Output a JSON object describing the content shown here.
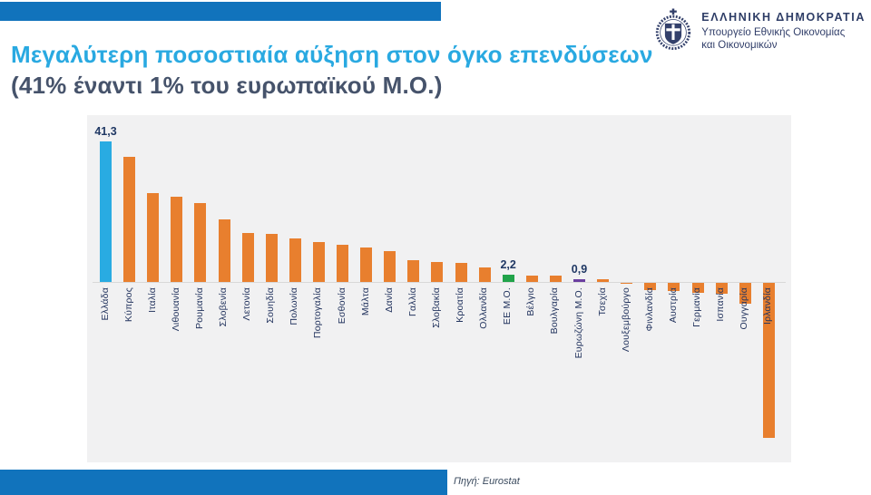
{
  "gov_header": {
    "title": "ΕΛΛΗΝΙΚΗ ΔΗΜΟΚΡΑΤΙΑ",
    "subtitle_line1": "Υπουργείο Εθνικής Οικονομίας",
    "subtitle_line2": "και Οικονομικών"
  },
  "title": {
    "line1": "Μεγαλύτερη ποσοστιαία αύξηση στον όγκο επενδύσεων",
    "line2": "(41% έναντι 1% του ευρωπαϊκού Μ.Ο.)"
  },
  "source": "Πηγή: Eurostat",
  "colors": {
    "brand_blue": "#1173bc",
    "title_blue": "#29a9e1",
    "bar_default": "#e87f2e",
    "bar_greece": "#29abe2",
    "bar_eu_avg": "#21a34a",
    "bar_eurozone_avg": "#6b3fa0",
    "navy_text": "#24355f",
    "panel_bg": "#f1f1f2"
  },
  "chart_data": {
    "type": "bar",
    "title": "Μεγαλύτερη ποσοστιαία αύξηση στον όγκο επενδύσεων (41% έναντι 1% του ευρωπαϊκού Μ.Ο.)",
    "xlabel": "",
    "ylabel": "",
    "ylim": [
      -50,
      45
    ],
    "grid": false,
    "legend": false,
    "categories": [
      "Ελλάδα",
      "Κύπρος",
      "Ιταλία",
      "Λιθουανία",
      "Ρουμανία",
      "Σλοβενία",
      "Λετονία",
      "Σουηδία",
      "Πολωνία",
      "Πορτογαλία",
      "Εσθονία",
      "Μάλτα",
      "Δανία",
      "Γαλλία",
      "Σλοβακία",
      "Κροατία",
      "Ολλανδία",
      "ΕΕ Μ.Ο.",
      "Βέλγιο",
      "Βουλγαρία",
      "Ευρωζώνη Μ.Ο.",
      "Τσεχία",
      "Λουξεμβούργο",
      "Φινλανδία",
      "Αυστρία",
      "Γερμανία",
      "Ισπανία",
      "Ουγγαρία",
      "Ιρλανδία"
    ],
    "values": [
      41.3,
      36.9,
      26.1,
      25.0,
      23.2,
      18.5,
      14.4,
      14.1,
      12.7,
      11.8,
      10.9,
      10.1,
      9.2,
      6.3,
      5.8,
      5.7,
      4.2,
      2.2,
      2.0,
      1.8,
      0.9,
      0.7,
      -0.1,
      -2.0,
      -2.5,
      -2.8,
      -3.2,
      -6.0,
      -45.7
    ],
    "highlight_colors": {
      "0": "#29abe2",
      "17": "#21a34a",
      "20": "#6b3fa0"
    },
    "value_labels": [
      {
        "index": 0,
        "text": "41,3"
      },
      {
        "index": 17,
        "text": "2,2"
      },
      {
        "index": 20,
        "text": "0,9"
      }
    ]
  }
}
